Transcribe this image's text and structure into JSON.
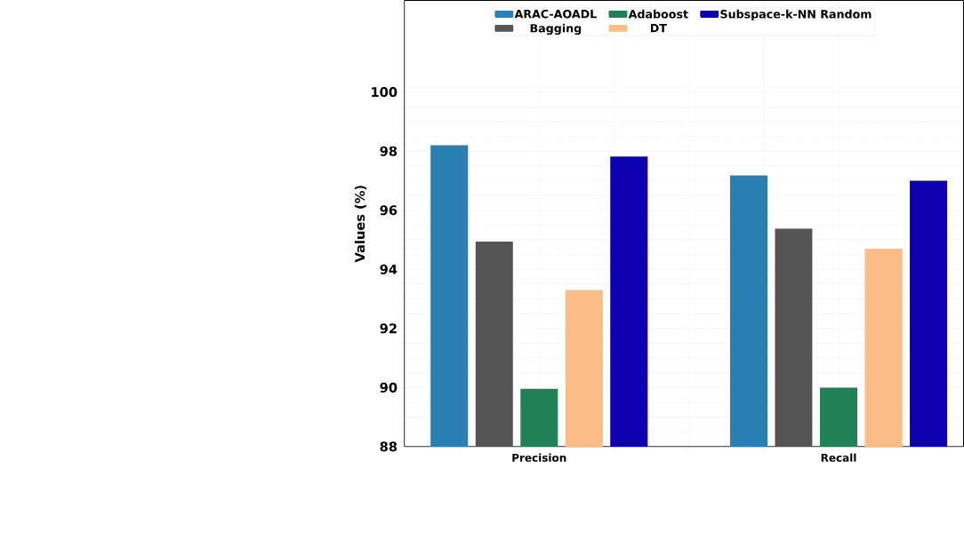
{
  "chart_data": {
    "type": "bar",
    "ylabel": "Values (%)",
    "categories": [
      "Precision",
      "Recall"
    ],
    "series": [
      {
        "name": "ARAC-AOADL",
        "color": "#2a7fb3",
        "values": [
          98.2,
          97.18
        ]
      },
      {
        "name": "Bagging",
        "color": "#555555",
        "values": [
          94.94,
          95.38
        ]
      },
      {
        "name": "Adaboost",
        "color": "#228056",
        "values": [
          89.96,
          90.0
        ]
      },
      {
        "name": "DT",
        "color": "#fcbc86",
        "values": [
          93.3,
          94.7
        ]
      },
      {
        "name": "Subspace-k-NN Random",
        "color": "#0c00b0",
        "values": [
          97.82,
          97.0
        ]
      }
    ],
    "ylim": [
      88,
      103.1
    ],
    "yticks": [
      88,
      90,
      92,
      94,
      96,
      98,
      100
    ],
    "grid": true,
    "legend": "top"
  }
}
